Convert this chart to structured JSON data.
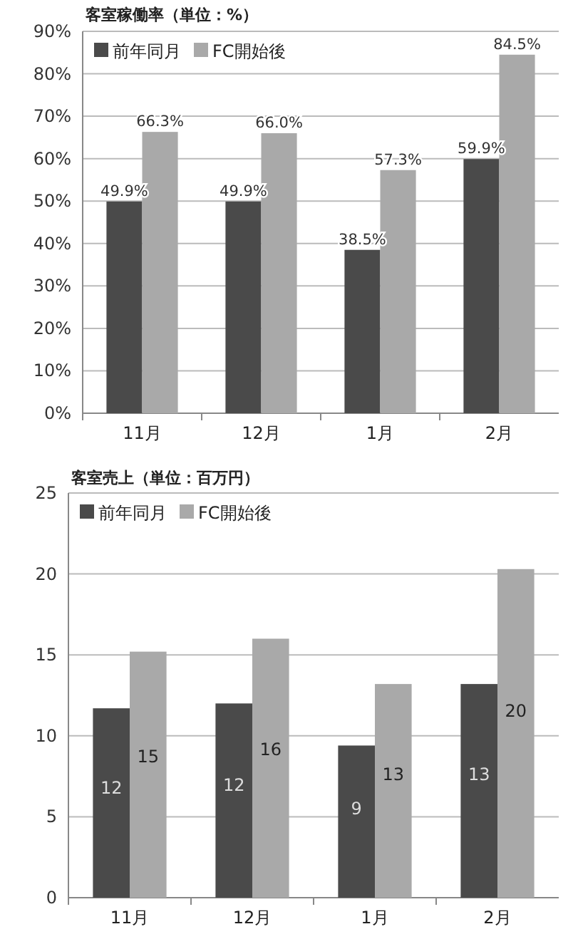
{
  "chart_data": [
    {
      "type": "bar",
      "title": "客室稼働率（単位：%）",
      "categories": [
        "11月",
        "12月",
        "1月",
        "2月"
      ],
      "series": [
        {
          "name": "前年同月",
          "color": "#4a4a4a",
          "values": [
            49.9,
            49.9,
            38.5,
            59.9
          ],
          "value_labels": [
            "49.9%",
            "49.9%",
            "38.5%",
            "59.9%"
          ]
        },
        {
          "name": "FC開始後",
          "color": "#a9a9a9",
          "values": [
            66.3,
            66.0,
            57.3,
            84.5
          ],
          "value_labels": [
            "66.3%",
            "66.0%",
            "57.3%",
            "84.5%"
          ]
        }
      ],
      "ylim": [
        0,
        90
      ],
      "yticks": [
        {
          "value": 0,
          "label": "0%"
        },
        {
          "value": 10,
          "label": "10%"
        },
        {
          "value": 20,
          "label": "20%"
        },
        {
          "value": 30,
          "label": "30%"
        },
        {
          "value": 40,
          "label": "40%"
        },
        {
          "value": 50,
          "label": "50%"
        },
        {
          "value": 60,
          "label": "60%"
        },
        {
          "value": 70,
          "label": "70%"
        },
        {
          "value": 80,
          "label": "80%"
        },
        {
          "value": 90,
          "label": "90%"
        }
      ],
      "grid": "y",
      "legend": "top left"
    },
    {
      "type": "bar",
      "title": "客室売上（単位：百万円）",
      "categories": [
        "11月",
        "12月",
        "1月",
        "2月"
      ],
      "series": [
        {
          "name": "前年同月",
          "color": "#4a4a4a",
          "values": [
            11.7,
            12.0,
            9.4,
            13.2
          ],
          "value_labels": [
            "12",
            "12",
            "9",
            "13"
          ]
        },
        {
          "name": "FC開始後",
          "color": "#a9a9a9",
          "values": [
            15.2,
            16.0,
            13.2,
            20.3
          ],
          "value_labels": [
            "15",
            "16",
            "13",
            "20"
          ]
        }
      ],
      "ylim": [
        0,
        25
      ],
      "yticks": [
        0,
        5,
        10,
        15,
        20,
        25
      ],
      "grid": "y",
      "legend": "top left"
    }
  ]
}
